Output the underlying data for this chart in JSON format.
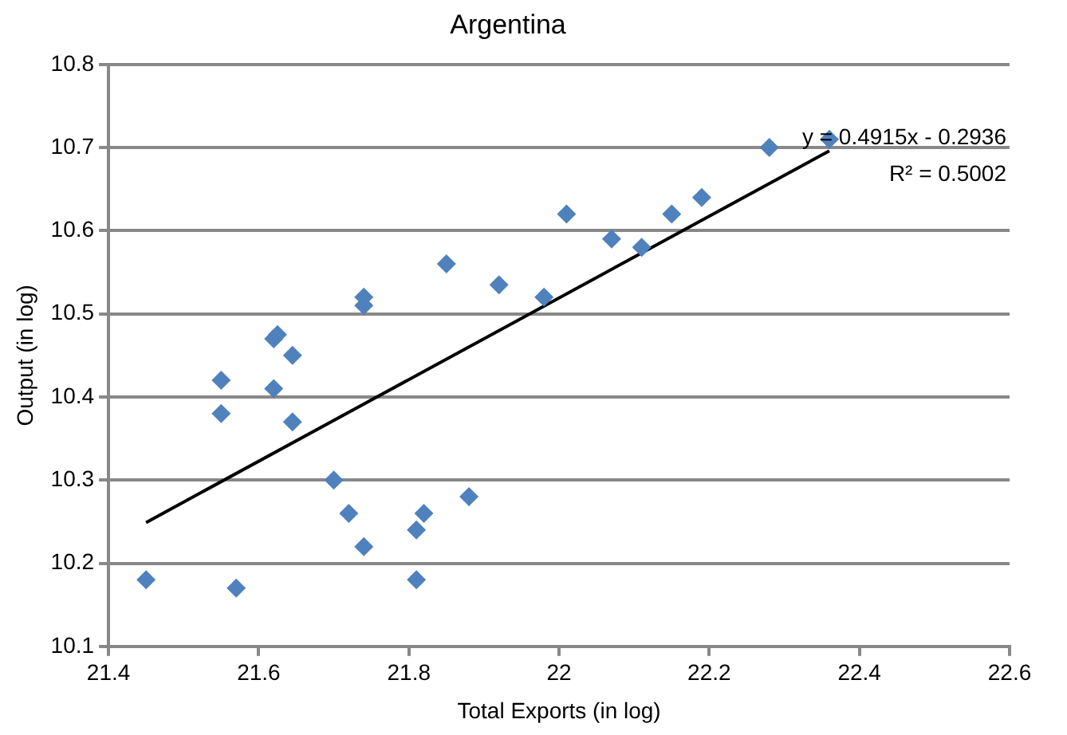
{
  "chart_data": {
    "type": "scatter",
    "title": "Argentina",
    "xlabel": "Total Exports (in log)",
    "ylabel": "Output (in log)",
    "xlim": [
      21.4,
      22.6
    ],
    "xticks": [
      21.4,
      21.6,
      21.8,
      22,
      22.2,
      22.4,
      22.6
    ],
    "ylim": [
      10.1,
      10.8
    ],
    "yticks": [
      10.1,
      10.2,
      10.3,
      10.4,
      10.5,
      10.6,
      10.7,
      10.8
    ],
    "grid": "y",
    "legend": false,
    "marker": "diamond",
    "annotations": [
      "y = 0.4915x - 0.2936",
      "R² = 0.5002"
    ],
    "series": [
      {
        "color": "#4f81bd",
        "x": [
          21.45,
          21.57,
          21.55,
          21.55,
          21.62,
          21.625,
          21.62,
          21.645,
          21.645,
          21.7,
          21.72,
          21.74,
          21.74,
          21.74,
          21.81,
          21.81,
          21.82,
          21.88,
          21.85,
          21.92,
          21.98,
          22.01,
          22.07,
          22.11,
          22.15,
          22.19,
          22.28,
          22.36
        ],
        "values": [
          10.18,
          10.17,
          10.42,
          10.38,
          10.47,
          10.475,
          10.41,
          10.45,
          10.37,
          10.3,
          10.26,
          10.22,
          10.52,
          10.51,
          10.24,
          10.18,
          10.26,
          10.28,
          10.56,
          10.535,
          10.52,
          10.62,
          10.59,
          10.58,
          10.62,
          10.64,
          10.7,
          10.71
        ]
      },
      {
        "type": "line",
        "color": "#000000",
        "marker": "none",
        "line_style": "solid",
        "x": [
          21.45,
          22.36
        ],
        "values": [
          10.249,
          10.696
        ]
      }
    ]
  }
}
